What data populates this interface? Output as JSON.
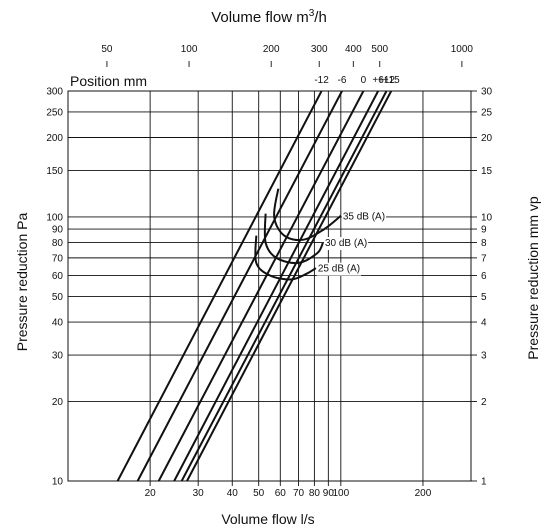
{
  "chart_data": {
    "type": "line",
    "x_axis": {
      "label": "Volume flow l/s",
      "scale": "log",
      "range": [
        10,
        300
      ],
      "ticks": [
        20,
        30,
        40,
        50,
        60,
        70,
        80,
        90,
        100,
        200
      ]
    },
    "x2_axis": {
      "label_prefix": "Volume flow m",
      "label_sup": "3",
      "label_suffix": "/h",
      "ticks": [
        50,
        100,
        200,
        300,
        400,
        500,
        1000
      ]
    },
    "y_axis": {
      "label": "Pressure reduction Pa",
      "scale": "log",
      "range": [
        10,
        300
      ],
      "ticks": [
        10,
        20,
        30,
        40,
        50,
        60,
        70,
        80,
        90,
        100,
        150,
        200,
        250,
        300
      ]
    },
    "y2_axis": {
      "label": "Pressure reduction mm vp",
      "ticks": [
        1,
        2,
        3,
        4,
        5,
        6,
        7,
        8,
        9,
        10,
        15,
        20,
        25,
        30
      ]
    },
    "position_label": "Position mm",
    "series": [
      {
        "name": "-12",
        "x": [
          15.2,
          85
        ],
        "y": [
          10,
          300
        ]
      },
      {
        "name": "-6",
        "x": [
          18.0,
          101
        ],
        "y": [
          10,
          300
        ]
      },
      {
        "name": "0",
        "x": [
          21.5,
          121
        ],
        "y": [
          10,
          300
        ]
      },
      {
        "name": "+6",
        "x": [
          24.5,
          137
        ],
        "y": [
          10,
          300
        ]
      },
      {
        "name": "+12",
        "x": [
          26.1,
          147
        ],
        "y": [
          10,
          300
        ]
      },
      {
        "name": "+15",
        "x": [
          27.3,
          153
        ],
        "y": [
          10,
          300
        ]
      }
    ],
    "sound_curves": [
      {
        "label": "35 dB (A)",
        "points": [
          [
            59,
            128
          ],
          [
            57,
            100
          ],
          [
            62,
            85
          ],
          [
            73,
            82
          ],
          [
            87,
            90
          ],
          [
            100,
            101
          ]
        ]
      },
      {
        "label": "30 dB (A)",
        "points": [
          [
            53,
            103
          ],
          [
            53,
            80
          ],
          [
            58,
            70
          ],
          [
            70,
            67
          ],
          [
            82,
            73
          ],
          [
            86,
            80
          ]
        ]
      },
      {
        "label": "25 dB (A)",
        "points": [
          [
            49,
            85
          ],
          [
            49,
            67
          ],
          [
            55,
            60
          ],
          [
            66,
            58
          ],
          [
            75,
            61
          ],
          [
            81,
            64
          ]
        ]
      }
    ]
  }
}
